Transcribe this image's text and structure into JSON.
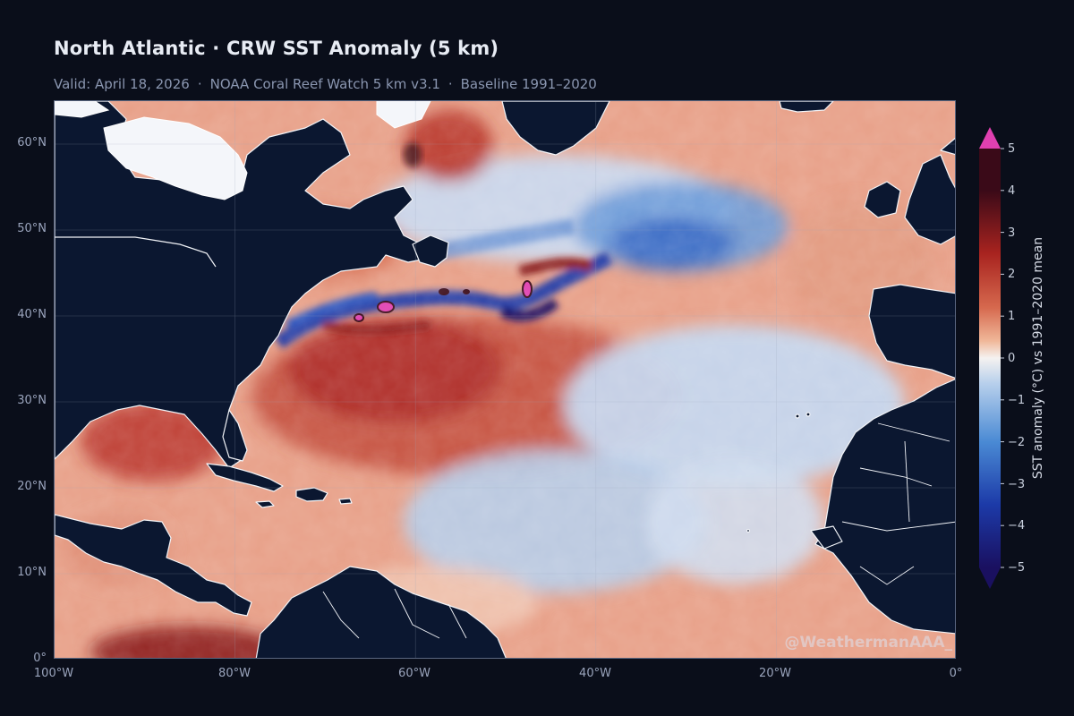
{
  "header": {
    "title": "North Atlantic · CRW SST Anomaly (5 km)",
    "subtitle_parts": [
      "Valid: April 18, 2026",
      "NOAA Coral Reef Watch 5 km v3.1",
      "Baseline 1991–2020"
    ]
  },
  "map": {
    "lat_labels": [
      "60°N",
      "50°N",
      "40°N",
      "30°N",
      "20°N",
      "10°N",
      "0°"
    ],
    "lon_labels": [
      "100°W",
      "80°W",
      "60°W",
      "40°W",
      "20°W",
      "0°"
    ],
    "watermark": "@WeathermanAAA_"
  },
  "colorbar": {
    "title": "SST anomaly (°C)  vs 1991–2020 mean",
    "ticks": [
      "5",
      "4",
      "3",
      "2",
      "1",
      "0",
      "−1",
      "−2",
      "−3",
      "−4",
      "−5"
    ],
    "colors": {
      "pos_extreme": "#e040b0",
      "pos_dark": "#3a0a18",
      "pos_strong": "#a8231f",
      "pos_mid": "#d6694e",
      "pos_light": "#f0b89a",
      "neutral": "#f5f2f0",
      "neg_light": "#b8d0ec",
      "neg_mid": "#4a8ad4",
      "neg_strong": "#1c3aa8",
      "neg_extreme": "#1a1060"
    }
  }
}
